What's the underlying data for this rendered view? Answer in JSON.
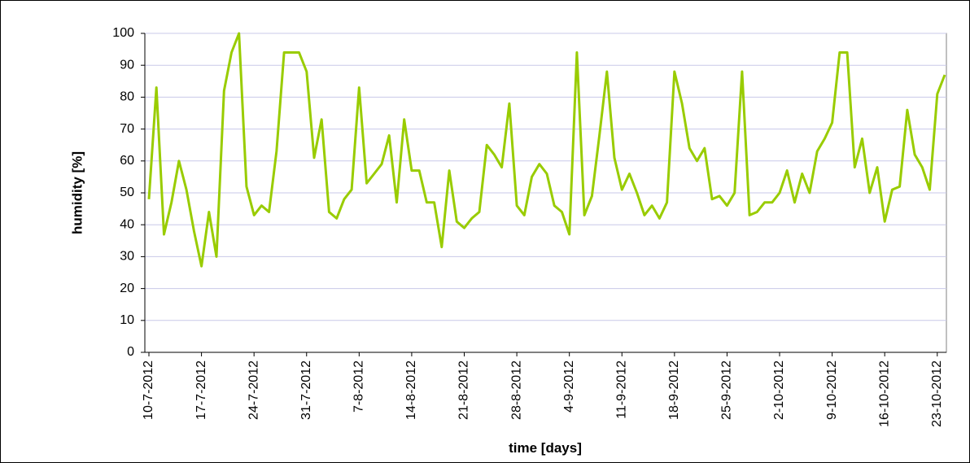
{
  "chart_data": {
    "type": "line",
    "xlabel": "time [days]",
    "ylabel": "humidity [%]",
    "categories": [
      "10-7-2012",
      null,
      null,
      null,
      null,
      null,
      null,
      "17-7-2012",
      null,
      null,
      null,
      null,
      null,
      null,
      "24-7-2012",
      null,
      null,
      null,
      null,
      null,
      null,
      "31-7-2012",
      null,
      null,
      null,
      null,
      null,
      null,
      "7-8-2012",
      null,
      null,
      null,
      null,
      null,
      null,
      "14-8-2012",
      null,
      null,
      null,
      null,
      null,
      null,
      "21-8-2012",
      null,
      null,
      null,
      null,
      null,
      null,
      "28-8-2012",
      null,
      null,
      null,
      null,
      null,
      null,
      "4-9-2012",
      null,
      null,
      null,
      null,
      null,
      null,
      "11-9-2012",
      null,
      null,
      null,
      null,
      null,
      null,
      "18-9-2012",
      null,
      null,
      null,
      null,
      null,
      null,
      "25-9-2012",
      null,
      null,
      null,
      null,
      null,
      null,
      "2-10-2012",
      null,
      null,
      null,
      null,
      null,
      null,
      "9-10-2012",
      null,
      null,
      null,
      null,
      null,
      null,
      "16-10-2012",
      null,
      null,
      null,
      null,
      null,
      null,
      "23-10-2012",
      null
    ],
    "series": [
      {
        "name": "humidity",
        "color": "#99cc00",
        "values": [
          48,
          83,
          37,
          47,
          60,
          51,
          38,
          27,
          44,
          30,
          82,
          94,
          100,
          52,
          43,
          46,
          44,
          63,
          94,
          94,
          94,
          88,
          61,
          73,
          44,
          42,
          48,
          51,
          83,
          53,
          56,
          59,
          68,
          47,
          73,
          57,
          57,
          47,
          47,
          33,
          57,
          41,
          39,
          42,
          44,
          65,
          62,
          58,
          78,
          46,
          43,
          55,
          59,
          56,
          46,
          44,
          37,
          94,
          43,
          49,
          68,
          88,
          61,
          51,
          56,
          50,
          43,
          46,
          42,
          47,
          88,
          78,
          64,
          60,
          64,
          48,
          49,
          46,
          50,
          88,
          43,
          44,
          47,
          47,
          50,
          57,
          47,
          56,
          50,
          63,
          67,
          72,
          94,
          94,
          58,
          67,
          50,
          58,
          41,
          51,
          52,
          76,
          62,
          58,
          51,
          81,
          87
        ]
      }
    ],
    "ylim": [
      0,
      100
    ],
    "yticks": [
      0,
      10,
      20,
      30,
      40,
      50,
      60,
      70,
      80,
      90,
      100
    ],
    "grid": true
  }
}
